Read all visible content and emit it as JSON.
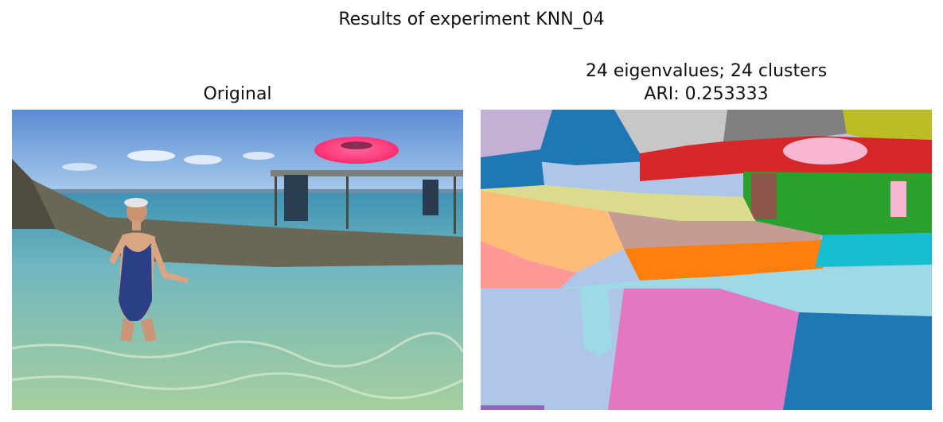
{
  "figure": {
    "suptitle": "Results of experiment KNN_04"
  },
  "panels": {
    "left": {
      "title": "Original",
      "subject": "photo"
    },
    "right": {
      "title_line1": "24 eigenvalues; 24 clusters",
      "title_line2": "ARI: 0.253333",
      "eigenvalues": 24,
      "clusters": 24,
      "ari": 0.253333,
      "subject": "segmentation-map"
    }
  },
  "colors": {
    "sky_top": "#5f8fd6",
    "sky_bottom": "#9ec3ea",
    "sea": "#5fb0c0",
    "shallow": "#a9cfae",
    "boat": "#6b6a58",
    "frisbee": "#ff3b7c",
    "swimsuit": "#2b3f86",
    "skin": "#d9a684",
    "seg_lilac": "#c5b0d5",
    "seg_blue": "#1f77b4",
    "seg_silver": "#c7c7c7",
    "seg_gray": "#7f7f7f",
    "seg_olive": "#bcbd22",
    "seg_red": "#d62728",
    "seg_pink": "#f7b6d2",
    "seg_green": "#2ca02c",
    "seg_brown": "#8c564b",
    "seg_khaki": "#dbdb8d",
    "seg_peach": "#ffbb78",
    "seg_salmon": "#ff9896",
    "seg_rosybrown": "#c49c94",
    "seg_orange": "#ff7f0e",
    "seg_cyan": "#17becf",
    "seg_lightcyan": "#9edae5",
    "seg_magenta": "#e377c2",
    "seg_lightblue": "#aec7e8",
    "seg_purple": "#9467bd"
  }
}
